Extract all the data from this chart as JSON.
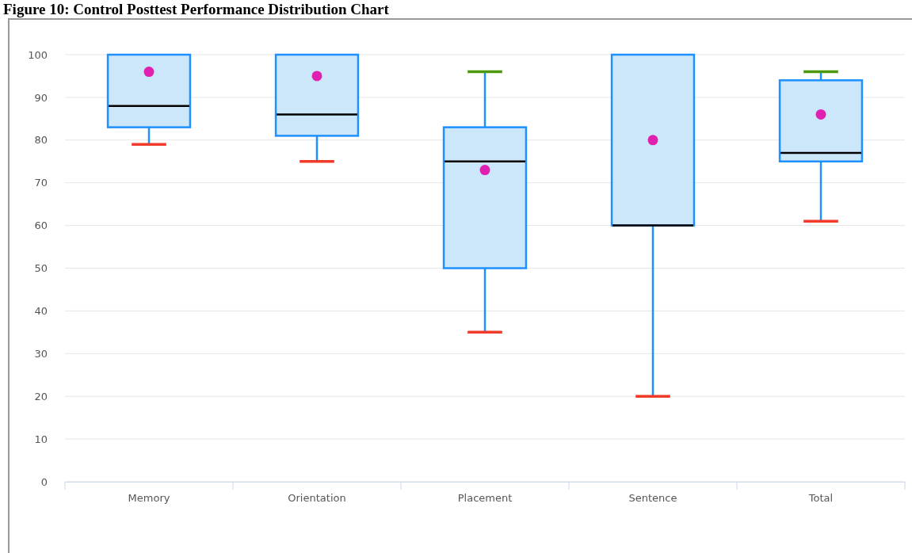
{
  "chart_data": {
    "type": "box",
    "title": "Figure 10: Control Posttest Performance Distribution Chart",
    "categories": [
      "Memory",
      "Orientation",
      "Placement",
      "Sentence",
      "Total"
    ],
    "series": [
      {
        "color": "#1e90ff",
        "boxes": [
          {
            "low": 79,
            "q1": 83,
            "median": 88,
            "q3": 100,
            "high": 100,
            "mean": 96
          },
          {
            "low": 75,
            "q1": 81,
            "median": 86,
            "q3": 100,
            "high": 100,
            "mean": 95
          },
          {
            "low": 35,
            "q1": 50,
            "median": 75,
            "q3": 83,
            "high": 96,
            "mean": 73
          },
          {
            "low": 20,
            "q1": 60,
            "median": 60,
            "q3": 100,
            "high": 100,
            "mean": 80
          },
          {
            "low": 61,
            "q1": 75,
            "median": 77,
            "q3": 94,
            "high": 96,
            "mean": 86
          }
        ]
      }
    ],
    "ylim": [
      0,
      100
    ],
    "yticks": [
      0,
      10,
      20,
      30,
      40,
      50,
      60,
      70,
      80,
      90,
      100
    ],
    "grid": "y"
  }
}
